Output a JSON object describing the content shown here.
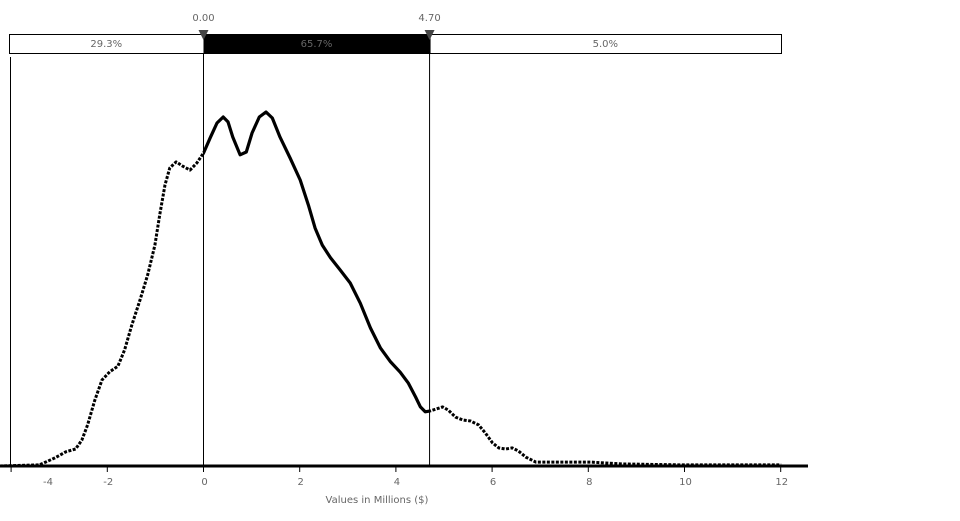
{
  "chart_data": {
    "type": "line",
    "xlabel": "Values in Millions ($)",
    "ylabel": "",
    "title": "",
    "xlim": [
      -4.24,
      12.55
    ],
    "ylim": [
      0,
      1
    ],
    "x_ticks": [
      -4,
      -2,
      0,
      2,
      4,
      6,
      8,
      10,
      12
    ],
    "x_tick_labels": [
      "-4",
      "-2",
      "0",
      "2",
      "4",
      "6",
      "8",
      "10",
      "12"
    ],
    "grid": false,
    "delimiters": {
      "left": {
        "value": 0,
        "label": "0.00"
      },
      "right": {
        "value": 4.7,
        "label": "4.70"
      }
    },
    "regions": [
      {
        "label": "29.3%",
        "value": 29.3,
        "highlighted": false
      },
      {
        "label": "65.7%",
        "value": 65.7,
        "highlighted": true
      },
      {
        "label": "5.0%",
        "value": 5.0,
        "highlighted": false
      }
    ],
    "series": [
      {
        "x": [
          -4.24,
          -3.41,
          -3.09,
          -2.86,
          -2.66,
          -2.53,
          -2.41,
          -2.26,
          -2.11,
          -1.95,
          -1.78,
          -1.64,
          -1.49,
          -1.32,
          -1.16,
          -1.01,
          -0.91,
          -0.8,
          -0.7,
          -0.57,
          -0.43,
          -0.28,
          -0.14,
          0,
          0.14,
          0.28,
          0.41,
          0.51,
          0.61,
          0.76,
          0.89,
          1.01,
          1.16,
          1.3,
          1.43,
          1.59,
          1.8,
          2.01,
          2.18,
          2.32,
          2.47,
          2.64,
          2.84,
          3.05,
          3.26,
          3.47,
          3.68,
          3.89,
          4.09,
          4.26,
          4.41,
          4.51,
          4.61,
          4.7,
          4.84,
          4.97,
          5.09,
          5.24,
          5.39,
          5.55,
          5.72,
          5.86,
          6.01,
          6.14,
          6.28,
          6.42,
          6.55,
          6.7,
          6.91,
          7.43,
          8.05,
          8.68,
          9.93,
          12.01
        ],
        "y": [
          0,
          0.003,
          0.023,
          0.04,
          0.048,
          0.073,
          0.116,
          0.186,
          0.243,
          0.266,
          0.282,
          0.328,
          0.398,
          0.469,
          0.54,
          0.624,
          0.709,
          0.794,
          0.842,
          0.859,
          0.847,
          0.836,
          0.856,
          0.884,
          0.927,
          0.969,
          0.986,
          0.972,
          0.929,
          0.879,
          0.887,
          0.941,
          0.986,
          1.0,
          0.983,
          0.929,
          0.87,
          0.808,
          0.737,
          0.672,
          0.624,
          0.588,
          0.554,
          0.517,
          0.46,
          0.39,
          0.333,
          0.294,
          0.265,
          0.234,
          0.195,
          0.167,
          0.153,
          0.155,
          0.161,
          0.167,
          0.158,
          0.138,
          0.13,
          0.127,
          0.116,
          0.093,
          0.065,
          0.051,
          0.048,
          0.051,
          0.042,
          0.025,
          0.011,
          0.011,
          0.011,
          0.006,
          0.003,
          0.003
        ]
      }
    ],
    "colors": {
      "line": "#000000",
      "highlight": "#000000",
      "text": "#666666"
    }
  }
}
